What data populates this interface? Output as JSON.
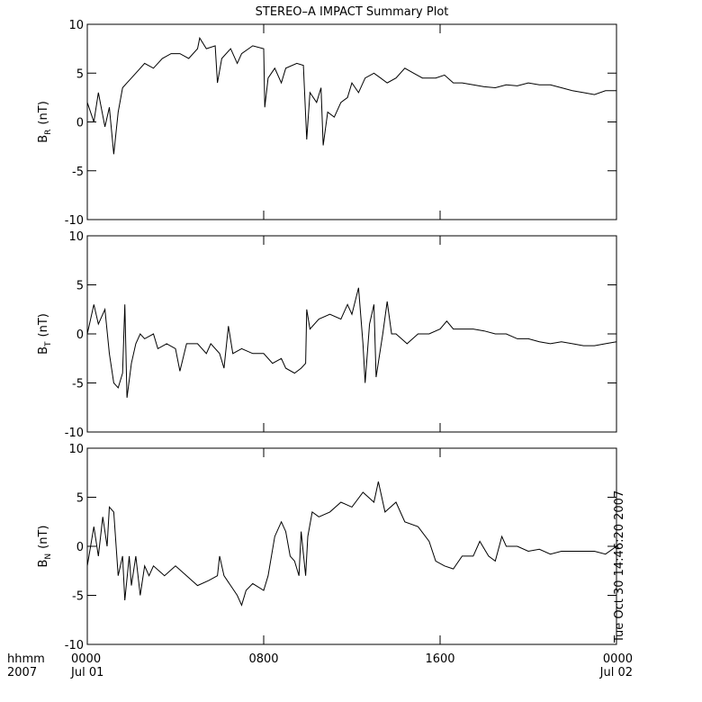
{
  "chart_data": [
    {
      "type": "line",
      "title": "STEREO–A IMPACT Summary Plot",
      "ylabel": {
        "base": "B",
        "sub": "R",
        "unit": "(nT)"
      },
      "color": "#000000",
      "xlim": [
        0,
        24
      ],
      "xticks": [
        0,
        8,
        16,
        24
      ],
      "ylim": [
        -10,
        10
      ],
      "yticks": [
        -10,
        -5,
        0,
        5,
        10
      ],
      "x": [
        0,
        0.3,
        0.5,
        0.8,
        1,
        1.2,
        1.4,
        1.6,
        1.8,
        2.2,
        2.6,
        3,
        3.4,
        3.8,
        4.2,
        4.6,
        5,
        5.1,
        5.4,
        5.8,
        5.9,
        6.1,
        6.5,
        6.8,
        7,
        7.5,
        8,
        8.05,
        8.2,
        8.5,
        8.8,
        9,
        9.5,
        9.8,
        9.95,
        10.1,
        10.4,
        10.6,
        10.7,
        10.9,
        11.2,
        11.5,
        11.8,
        12,
        12.3,
        12.6,
        13,
        13.3,
        13.6,
        14,
        14.4,
        14.8,
        15.2,
        15.8,
        16.2,
        16.6,
        17,
        17.5,
        18,
        18.5,
        19,
        19.5,
        20,
        20.5,
        21,
        21.5,
        22,
        22.5,
        23,
        23.5,
        24
      ],
      "values": [
        2,
        0,
        3,
        -0.5,
        1.5,
        -3.3,
        1,
        3.5,
        4,
        5,
        6,
        5.5,
        6.5,
        7,
        7,
        6.5,
        7.5,
        8.6,
        7.5,
        7.8,
        4,
        6.5,
        7.5,
        6,
        7,
        7.8,
        7.5,
        1.5,
        4.5,
        5.5,
        4,
        5.5,
        6,
        5.8,
        -1.8,
        3,
        2,
        3.5,
        -2.4,
        1,
        0.5,
        2,
        2.5,
        4,
        3,
        4.5,
        5,
        4.5,
        4,
        4.5,
        5.5,
        5,
        4.5,
        4.5,
        4.8,
        4,
        4,
        3.8,
        3.6,
        3.5,
        3.8,
        3.7,
        4,
        3.8,
        3.8,
        3.5,
        3.2,
        3,
        2.8,
        3.2,
        3.2
      ]
    },
    {
      "type": "line",
      "ylabel": {
        "base": "B",
        "sub": "T",
        "unit": "(nT)"
      },
      "color": "#000000",
      "xlim": [
        0,
        24
      ],
      "xticks": [
        0,
        8,
        16,
        24
      ],
      "ylim": [
        -10,
        10
      ],
      "yticks": [
        -10,
        -5,
        0,
        5,
        10
      ],
      "x": [
        0,
        0.3,
        0.5,
        0.8,
        1,
        1.2,
        1.4,
        1.6,
        1.7,
        1.8,
        2,
        2.2,
        2.4,
        2.6,
        3,
        3.2,
        3.6,
        4,
        4.2,
        4.5,
        5,
        5.4,
        5.6,
        6,
        6.2,
        6.4,
        6.6,
        7,
        7.5,
        8,
        8.4,
        8.8,
        9,
        9.4,
        9.7,
        9.9,
        9.95,
        10.1,
        10.5,
        11,
        11.5,
        11.8,
        12,
        12.3,
        12.5,
        12.6,
        12.8,
        13,
        13.1,
        13.4,
        13.6,
        13.8,
        14,
        14.5,
        15,
        15.5,
        16,
        16.3,
        16.6,
        17,
        17.5,
        18,
        18.5,
        19,
        19.5,
        20,
        20.5,
        21,
        21.5,
        22,
        22.5,
        23,
        23.5,
        24
      ],
      "values": [
        0,
        3,
        1,
        2.5,
        -2,
        -5,
        -5.5,
        -4,
        3,
        -6.5,
        -3,
        -1,
        0,
        -0.5,
        0,
        -1.5,
        -1,
        -1.5,
        -3.8,
        -1,
        -1,
        -2,
        -1,
        -2,
        -3.5,
        0.8,
        -2,
        -1.5,
        -2,
        -2,
        -3,
        -2.5,
        -3.5,
        -4,
        -3.5,
        -3,
        2.5,
        0.5,
        1.5,
        2,
        1.5,
        3,
        2,
        4.7,
        -1,
        -5,
        1,
        3,
        -4.4,
        0,
        3.3,
        0,
        0,
        -1,
        0,
        0,
        0.5,
        1.3,
        0.5,
        0.5,
        0.5,
        0.3,
        0,
        0,
        -0.5,
        -0.5,
        -0.8,
        -1,
        -0.8,
        -1,
        -1.2,
        -1.2,
        -1,
        -0.8
      ]
    },
    {
      "type": "line",
      "ylabel": {
        "base": "B",
        "sub": "N",
        "unit": "(nT)"
      },
      "color": "#000000",
      "xlim": [
        0,
        24
      ],
      "xticks": [
        {
          "value": 0,
          "label": "0000"
        },
        {
          "value": 8,
          "label": "0800"
        },
        {
          "value": 16,
          "label": "1600"
        },
        {
          "value": 24,
          "label": "0000"
        }
      ],
      "xtick_dates": [
        "Jul 01",
        null,
        null,
        "Jul 02"
      ],
      "x_axis_labels": [
        "hhmm",
        "2007"
      ],
      "annotation": "Tue Oct 30 14:46:20 2007",
      "ylim": [
        -10,
        10
      ],
      "yticks": [
        -10,
        -5,
        0,
        5,
        10
      ],
      "x": [
        0,
        0.3,
        0.5,
        0.7,
        0.9,
        1,
        1.2,
        1.4,
        1.6,
        1.7,
        1.9,
        2,
        2.2,
        2.4,
        2.6,
        2.8,
        3,
        3.5,
        4,
        4.5,
        5,
        5.5,
        5.9,
        6,
        6.2,
        6.5,
        6.8,
        7,
        7.2,
        7.5,
        8,
        8.2,
        8.5,
        8.8,
        9,
        9.2,
        9.4,
        9.6,
        9.7,
        9.9,
        10,
        10.2,
        10.5,
        11,
        11.5,
        12,
        12.5,
        13,
        13.2,
        13.5,
        14,
        14.4,
        15,
        15.5,
        15.8,
        16.2,
        16.6,
        17,
        17.5,
        17.8,
        18.2,
        18.5,
        18.8,
        19,
        19.5,
        20,
        20.5,
        21,
        21.5,
        22,
        23,
        23.5,
        24
      ],
      "values": [
        -2,
        2,
        -1,
        3,
        0,
        4,
        3.5,
        -3,
        -1,
        -5.5,
        -1,
        -4,
        -1,
        -5,
        -2,
        -3,
        -2,
        -3,
        -2,
        -3,
        -4,
        -3.5,
        -3,
        -1,
        -3,
        -4,
        -5,
        -6,
        -4.5,
        -3.8,
        -4.5,
        -3,
        1,
        2.5,
        1.5,
        -1,
        -1.5,
        -3,
        1.5,
        -3,
        1,
        3.5,
        3,
        3.5,
        4.5,
        4,
        5.5,
        4.5,
        6.6,
        3.5,
        4.5,
        2.5,
        2,
        0.5,
        -1.5,
        -2,
        -2.3,
        -1,
        -1,
        0.5,
        -1,
        -1.5,
        1,
        0,
        0,
        -0.5,
        -0.3,
        -0.8,
        -0.5,
        -0.5,
        -0.5,
        -0.8,
        0
      ]
    }
  ]
}
